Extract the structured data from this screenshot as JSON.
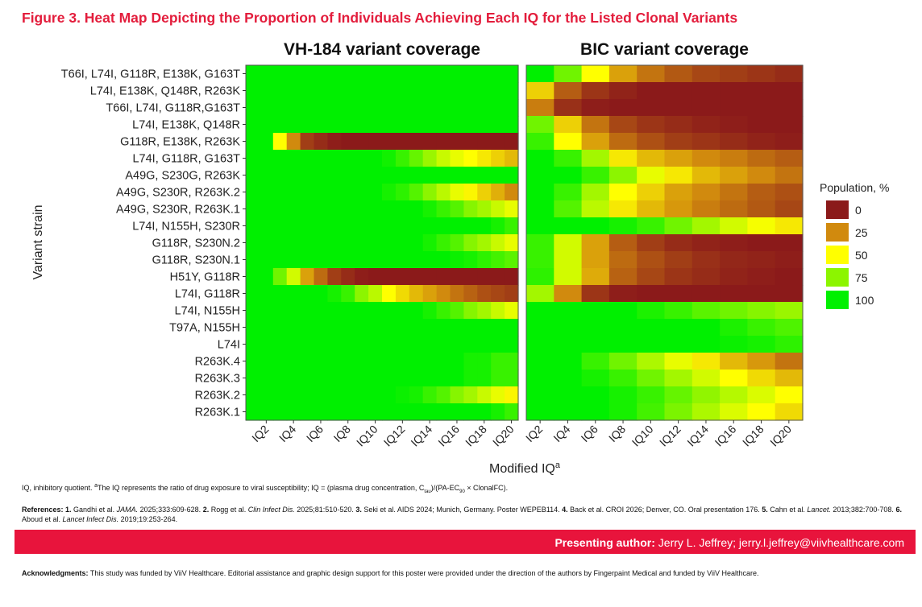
{
  "figure_title": "Figure 3. Heat Map Depicting the Proportion of Individuals Achieving Each IQ for the Listed Clonal Variants",
  "footnote": {
    "text_pre": "IQ, inhibitory quotient. ",
    "sup_a": "a",
    "text_mid": "The IQ represents the ratio of drug exposure to viral susceptibility; IQ = (plasma drug concentration, C",
    "sub_tau": "tau",
    "text_mid2": ")/(PA-EC",
    "sub_90": "90",
    "text_end": " × ClonalFC)."
  },
  "references": {
    "label": "References: ",
    "items": [
      {
        "num": "1.",
        "pre": " Gandhi et al. ",
        "journal": "JAMA.",
        "post": " 2025;333:609-628. "
      },
      {
        "num": "2.",
        "pre": " Rogg et al. ",
        "journal": "Clin Infect Dis.",
        "post": " 2025;81:510-520. "
      },
      {
        "num": "3.",
        "pre": " Seki et al. AIDS 2024; Munich, Germany. Poster WEPEB114. ",
        "journal": "",
        "post": ""
      },
      {
        "num": "4.",
        "pre": " Back et al. CROI 2026; Denver, CO. Oral presentation 176. ",
        "journal": "",
        "post": ""
      },
      {
        "num": "5.",
        "pre": " Cahn et al. ",
        "journal": "Lancet.",
        "post": " 2013;382:700-708. "
      },
      {
        "num": "6.",
        "pre": " Aboud et al. ",
        "journal": "Lancet Infect Dis.",
        "post": " 2019;19:253-264."
      }
    ]
  },
  "author": {
    "label": "Presenting author:",
    "value": " Jerry L. Jeffrey; jerry.l.jeffrey@viivhealthcare.com"
  },
  "acknowledgments": {
    "label": "Acknowledgments:",
    "text": " This study was funded by ViiV Healthcare. Editorial assistance and graphic design support for this poster were provided under the direction of the authors by Fingerpaint Medical and funded by ViiV Healthcare."
  },
  "chart_data": {
    "type": "heatmap",
    "xlabel": "Modified IQ",
    "xlabel_sup": "a",
    "ylabel": "Variant strain",
    "x_tick_labels": [
      "IQ2",
      "IQ4",
      "IQ6",
      "IQ8",
      "IQ10",
      "IQ12",
      "IQ14",
      "IQ16",
      "IQ18",
      "IQ20"
    ],
    "x": [
      1,
      2,
      3,
      4,
      5,
      6,
      7,
      8,
      9,
      10,
      11,
      12,
      13,
      14,
      15,
      16,
      17,
      18,
      19,
      20
    ],
    "rows": [
      "T66I, L74I, G118R, E138K, G163T",
      "L74I, E138K, Q148R, R263K",
      "T66I, L74I, G118R,G163T",
      "L74I, E138K, Q148R",
      "G118R, E138K, R263K",
      "L74I, G118R, G163T",
      "A49G, S230G, R263K",
      "A49G, S230R, R263K.2",
      "A49G, S230R, R263K.1",
      "L74I, N155H, S230R",
      "G118R, S230N.2",
      "G118R, S230N.1",
      "H51Y, G118R",
      "L74I, G118R",
      "L74I, N155H",
      "T97A, N155H",
      "L74I",
      "R263K.4",
      "R263K.3",
      "R263K.2",
      "R263K.1"
    ],
    "legend": {
      "title": "Population, %",
      "placement": "right",
      "ticks": [
        0,
        25,
        50,
        75,
        100
      ],
      "colors": [
        "#8b1a1a",
        "#d18a0e",
        "#ffff00",
        "#8cf500",
        "#00f000"
      ]
    },
    "panels": [
      {
        "title": "VH-184 variant coverage",
        "values": [
          [
            100,
            100,
            100,
            100,
            100,
            100,
            100,
            100,
            100,
            100,
            100,
            100,
            100,
            100,
            100,
            100,
            100,
            100,
            100,
            100
          ],
          [
            100,
            100,
            100,
            100,
            100,
            100,
            100,
            100,
            100,
            100,
            100,
            100,
            100,
            100,
            100,
            100,
            100,
            100,
            100,
            100
          ],
          [
            100,
            100,
            100,
            100,
            100,
            100,
            100,
            100,
            100,
            100,
            100,
            100,
            100,
            100,
            100,
            100,
            100,
            100,
            100,
            100
          ],
          [
            100,
            100,
            100,
            100,
            100,
            100,
            100,
            100,
            100,
            100,
            100,
            100,
            100,
            100,
            100,
            100,
            100,
            100,
            100,
            100
          ],
          [
            100,
            100,
            50,
            25,
            8,
            4,
            1,
            0,
            0,
            0,
            0,
            0,
            0,
            0,
            0,
            0,
            0,
            0,
            0,
            0
          ],
          [
            100,
            100,
            100,
            100,
            100,
            100,
            100,
            100,
            100,
            100,
            97,
            90,
            82,
            72,
            62,
            55,
            50,
            45,
            40,
            35
          ],
          [
            100,
            100,
            100,
            100,
            100,
            100,
            100,
            100,
            100,
            100,
            100,
            100,
            100,
            100,
            100,
            100,
            100,
            100,
            100,
            100
          ],
          [
            100,
            100,
            100,
            100,
            100,
            100,
            100,
            100,
            100,
            100,
            96,
            92,
            85,
            75,
            65,
            55,
            48,
            40,
            33,
            25
          ],
          [
            100,
            100,
            100,
            100,
            100,
            100,
            100,
            100,
            100,
            100,
            100,
            100,
            100,
            96,
            90,
            85,
            76,
            70,
            62,
            55
          ],
          [
            100,
            100,
            100,
            100,
            100,
            100,
            100,
            100,
            100,
            100,
            100,
            100,
            100,
            100,
            100,
            100,
            100,
            100,
            96,
            90
          ],
          [
            100,
            100,
            100,
            100,
            100,
            100,
            100,
            100,
            100,
            100,
            100,
            100,
            100,
            96,
            90,
            85,
            76,
            70,
            62,
            55
          ],
          [
            100,
            100,
            100,
            100,
            100,
            100,
            100,
            100,
            100,
            100,
            100,
            100,
            100,
            100,
            100,
            98,
            96,
            92,
            88,
            84
          ],
          [
            100,
            100,
            80,
            60,
            30,
            18,
            8,
            4,
            1,
            0,
            0,
            0,
            0,
            0,
            0,
            0,
            0,
            0,
            0,
            0
          ],
          [
            100,
            100,
            100,
            100,
            100,
            100,
            96,
            90,
            75,
            65,
            50,
            42,
            35,
            30,
            25,
            20,
            16,
            12,
            10,
            8
          ],
          [
            100,
            100,
            100,
            100,
            100,
            100,
            100,
            100,
            100,
            100,
            100,
            100,
            100,
            96,
            90,
            85,
            76,
            70,
            62,
            55
          ],
          [
            100,
            100,
            100,
            100,
            100,
            100,
            100,
            100,
            100,
            100,
            100,
            100,
            100,
            100,
            100,
            100,
            100,
            100,
            100,
            100
          ],
          [
            100,
            100,
            100,
            100,
            100,
            100,
            100,
            100,
            100,
            100,
            100,
            100,
            100,
            100,
            100,
            100,
            100,
            100,
            100,
            100
          ],
          [
            100,
            100,
            100,
            100,
            100,
            100,
            100,
            100,
            100,
            100,
            100,
            100,
            100,
            100,
            100,
            100,
            96,
            96,
            90,
            90
          ],
          [
            100,
            100,
            100,
            100,
            100,
            100,
            100,
            100,
            100,
            100,
            100,
            100,
            100,
            100,
            100,
            100,
            96,
            96,
            90,
            90
          ],
          [
            100,
            100,
            100,
            100,
            100,
            100,
            100,
            100,
            100,
            100,
            100,
            98,
            96,
            90,
            85,
            76,
            70,
            62,
            55,
            48
          ],
          [
            100,
            100,
            100,
            100,
            100,
            100,
            100,
            100,
            100,
            100,
            100,
            100,
            100,
            100,
            100,
            100,
            100,
            100,
            96,
            90
          ]
        ]
      },
      {
        "title": "BIC variant coverage",
        "values": [
          [
            100,
            80,
            50,
            30,
            20,
            14,
            10,
            8,
            6,
            4
          ],
          [
            40,
            15,
            6,
            2,
            0,
            0,
            0,
            0,
            0,
            0
          ],
          [
            22,
            5,
            1,
            0,
            0,
            0,
            0,
            0,
            0,
            0
          ],
          [
            80,
            40,
            20,
            10,
            6,
            4,
            2,
            1,
            0,
            0
          ],
          [
            90,
            50,
            30,
            18,
            12,
            8,
            6,
            4,
            2,
            1
          ],
          [
            100,
            90,
            70,
            45,
            35,
            30,
            25,
            22,
            18,
            15
          ],
          [
            100,
            100,
            90,
            75,
            55,
            45,
            35,
            30,
            25,
            20
          ],
          [
            100,
            90,
            70,
            50,
            40,
            30,
            25,
            20,
            15,
            12
          ],
          [
            100,
            85,
            65,
            45,
            35,
            28,
            22,
            18,
            14,
            10
          ],
          [
            100,
            100,
            100,
            96,
            90,
            80,
            70,
            60,
            52,
            45
          ],
          [
            90,
            60,
            30,
            15,
            8,
            4,
            2,
            1,
            0,
            0
          ],
          [
            90,
            60,
            30,
            18,
            12,
            8,
            5,
            3,
            2,
            1
          ],
          [
            92,
            60,
            32,
            16,
            10,
            6,
            4,
            2,
            1,
            0
          ],
          [
            70,
            25,
            6,
            1,
            0,
            0,
            0,
            0,
            0,
            0
          ],
          [
            100,
            100,
            100,
            100,
            95,
            90,
            84,
            80,
            76,
            72
          ],
          [
            100,
            100,
            100,
            100,
            100,
            100,
            100,
            95,
            90,
            86
          ],
          [
            100,
            100,
            100,
            100,
            100,
            100,
            100,
            98,
            96,
            92
          ],
          [
            100,
            100,
            90,
            80,
            68,
            55,
            45,
            35,
            28,
            20
          ],
          [
            100,
            100,
            96,
            90,
            80,
            70,
            60,
            50,
            42,
            35
          ],
          [
            100,
            100,
            100,
            96,
            90,
            82,
            74,
            66,
            58,
            50
          ],
          [
            100,
            100,
            100,
            96,
            88,
            78,
            68,
            58,
            50,
            42
          ]
        ]
      }
    ]
  }
}
